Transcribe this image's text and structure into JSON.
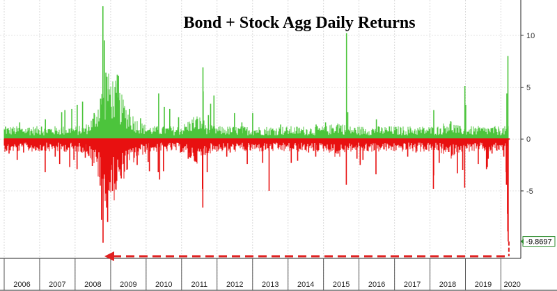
{
  "chart_data": {
    "type": "bar",
    "title": "Bond + Stock Agg Daily Returns",
    "xlabel": "",
    "ylabel": "",
    "x_range": [
      "2006-01-01",
      "2020-03-31"
    ],
    "ylim": [
      -11.5,
      13
    ],
    "y_ticks": [
      {
        "value": 10,
        "label": "10"
      },
      {
        "value": 5,
        "label": "5"
      },
      {
        "value": 0,
        "label": "0"
      },
      {
        "value": -5,
        "label": "-5"
      }
    ],
    "years": [
      "2006",
      "2007",
      "2008",
      "2009",
      "2010",
      "2011",
      "2012",
      "2013",
      "2014",
      "2015",
      "2016",
      "2017",
      "2018",
      "2019",
      "2020"
    ],
    "grid": true,
    "legend": "none",
    "last_value": {
      "date": "2020-03-16",
      "value": -9.8697,
      "label": "-9.8697"
    },
    "arrow": "dashed arrow from the latest value back to the 2008 low",
    "series": [
      {
        "color_positive": "#4cc43c",
        "color_negative": "#e81010",
        "points": [
          {
            "date": "2006-01-15",
            "value": 1.2
          },
          {
            "date": "2006-02-20",
            "value": -1.4
          },
          {
            "date": "2006-03-25",
            "value": 1.0
          },
          {
            "date": "2006-05-15",
            "value": -2.0
          },
          {
            "date": "2006-06-10",
            "value": 1.6
          },
          {
            "date": "2006-07-20",
            "value": -1.3
          },
          {
            "date": "2006-09-15",
            "value": 1.1
          },
          {
            "date": "2006-11-20",
            "value": -1.1
          },
          {
            "date": "2007-01-20",
            "value": 1.2
          },
          {
            "date": "2007-02-27",
            "value": -3.2
          },
          {
            "date": "2007-03-01",
            "value": 1.9
          },
          {
            "date": "2007-06-10",
            "value": -1.7
          },
          {
            "date": "2007-07-26",
            "value": -2.4
          },
          {
            "date": "2007-08-16",
            "value": 2.6
          },
          {
            "date": "2007-09-18",
            "value": 2.8
          },
          {
            "date": "2007-11-07",
            "value": -2.7
          },
          {
            "date": "2007-11-28",
            "value": 2.9
          },
          {
            "date": "2007-12-20",
            "value": -2.0
          },
          {
            "date": "2008-01-21",
            "value": -2.9
          },
          {
            "date": "2008-01-23",
            "value": 3.3
          },
          {
            "date": "2008-03-18",
            "value": 3.6
          },
          {
            "date": "2008-04-15",
            "value": -1.8
          },
          {
            "date": "2008-06-26",
            "value": -2.6
          },
          {
            "date": "2008-07-15",
            "value": 2.5
          },
          {
            "date": "2008-09-15",
            "value": -4.5
          },
          {
            "date": "2008-09-19",
            "value": 3.9
          },
          {
            "date": "2008-09-29",
            "value": -7.8
          },
          {
            "date": "2008-10-13",
            "value": 12.8
          },
          {
            "date": "2008-10-15",
            "value": -10.0
          },
          {
            "date": "2008-10-28",
            "value": 9.5
          },
          {
            "date": "2008-11-13",
            "value": 6.4
          },
          {
            "date": "2008-11-20",
            "value": -6.6
          },
          {
            "date": "2008-11-24",
            "value": 6.0
          },
          {
            "date": "2008-12-01",
            "value": -8.0
          },
          {
            "date": "2008-12-16",
            "value": 4.8
          },
          {
            "date": "2009-01-20",
            "value": -5.0
          },
          {
            "date": "2009-02-10",
            "value": -4.3
          },
          {
            "date": "2009-03-10",
            "value": 6.2
          },
          {
            "date": "2009-03-23",
            "value": 6.1
          },
          {
            "date": "2009-04-20",
            "value": -3.8
          },
          {
            "date": "2009-05-18",
            "value": 3.0
          },
          {
            "date": "2009-06-22",
            "value": -2.9
          },
          {
            "date": "2009-07-15",
            "value": 2.9
          },
          {
            "date": "2009-10-01",
            "value": -2.5
          },
          {
            "date": "2009-11-05",
            "value": 2.0
          },
          {
            "date": "2010-01-22",
            "value": -2.2
          },
          {
            "date": "2010-02-04",
            "value": -3.1
          },
          {
            "date": "2010-05-06",
            "value": -3.2
          },
          {
            "date": "2010-05-10",
            "value": 4.4
          },
          {
            "date": "2010-05-20",
            "value": -3.9
          },
          {
            "date": "2010-06-29",
            "value": -3.1
          },
          {
            "date": "2010-07-07",
            "value": 3.1
          },
          {
            "date": "2010-09-01",
            "value": 2.9
          },
          {
            "date": "2010-12-01",
            "value": 2.1
          },
          {
            "date": "2011-03-10",
            "value": -1.9
          },
          {
            "date": "2011-06-01",
            "value": -2.2
          },
          {
            "date": "2011-08-04",
            "value": -4.8
          },
          {
            "date": "2011-08-08",
            "value": -6.6
          },
          {
            "date": "2011-08-09",
            "value": 6.9
          },
          {
            "date": "2011-08-11",
            "value": 4.6
          },
          {
            "date": "2011-09-22",
            "value": -3.2
          },
          {
            "date": "2011-10-04",
            "value": 2.3
          },
          {
            "date": "2011-10-27",
            "value": 3.4
          },
          {
            "date": "2011-11-30",
            "value": 4.2
          },
          {
            "date": "2012-04-10",
            "value": -1.7
          },
          {
            "date": "2012-05-15",
            "value": -1.3
          },
          {
            "date": "2012-06-29",
            "value": 2.5
          },
          {
            "date": "2012-09-13",
            "value": 1.6
          },
          {
            "date": "2012-11-07",
            "value": -2.4
          },
          {
            "date": "2013-01-02",
            "value": 2.5
          },
          {
            "date": "2013-04-15",
            "value": -2.3
          },
          {
            "date": "2013-06-20",
            "value": -5.0
          },
          {
            "date": "2013-10-17",
            "value": 1.4
          },
          {
            "date": "2014-02-03",
            "value": -2.3
          },
          {
            "date": "2014-04-10",
            "value": -2.1
          },
          {
            "date": "2014-08-01",
            "value": -1.3
          },
          {
            "date": "2014-10-13",
            "value": -1.7
          },
          {
            "date": "2014-10-17",
            "value": 1.4
          },
          {
            "date": "2015-01-22",
            "value": 1.6
          },
          {
            "date": "2015-08-24",
            "value": -4.4
          },
          {
            "date": "2015-08-26",
            "value": 10.2
          },
          {
            "date": "2015-09-08",
            "value": 2.6
          },
          {
            "date": "2015-12-11",
            "value": -1.9
          },
          {
            "date": "2016-01-13",
            "value": -2.5
          },
          {
            "date": "2016-02-11",
            "value": -2.0
          },
          {
            "date": "2016-06-24",
            "value": -3.4
          },
          {
            "date": "2016-06-28",
            "value": 1.9
          },
          {
            "date": "2016-11-09",
            "value": 1.2
          },
          {
            "date": "2017-05-17",
            "value": -1.7
          },
          {
            "date": "2017-08-10",
            "value": -1.3
          },
          {
            "date": "2018-02-05",
            "value": -4.8
          },
          {
            "date": "2018-02-08",
            "value": -3.5
          },
          {
            "date": "2018-02-09",
            "value": 2.8
          },
          {
            "date": "2018-04-06",
            "value": -2.3
          },
          {
            "date": "2018-10-10",
            "value": -3.3
          },
          {
            "date": "2018-12-04",
            "value": -3.0
          },
          {
            "date": "2018-12-24",
            "value": -4.7
          },
          {
            "date": "2018-12-26",
            "value": 5.1
          },
          {
            "date": "2019-01-04",
            "value": 3.3
          },
          {
            "date": "2019-05-13",
            "value": -2.4
          },
          {
            "date": "2019-08-05",
            "value": -2.9
          },
          {
            "date": "2019-08-14",
            "value": -2.7
          },
          {
            "date": "2019-08-23",
            "value": -1.9
          },
          {
            "date": "2019-10-02",
            "value": -1.4
          },
          {
            "date": "2019-12-10",
            "value": 1.0
          },
          {
            "date": "2020-01-31",
            "value": -1.7
          },
          {
            "date": "2020-02-24",
            "value": -3.2
          },
          {
            "date": "2020-02-27",
            "value": -4.4
          },
          {
            "date": "2020-03-02",
            "value": 4.4
          },
          {
            "date": "2020-03-09",
            "value": -7.2
          },
          {
            "date": "2020-03-12",
            "value": -8.9
          },
          {
            "date": "2020-03-13",
            "value": 8.0
          },
          {
            "date": "2020-03-16",
            "value": -9.8697
          }
        ]
      }
    ]
  }
}
